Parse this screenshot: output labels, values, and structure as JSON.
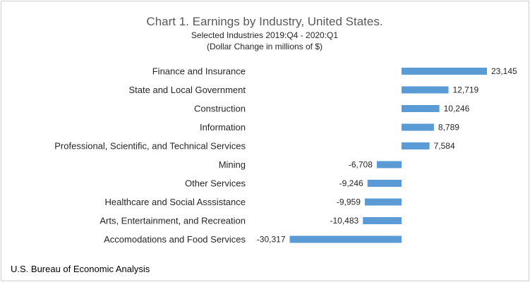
{
  "chart_data": {
    "type": "bar",
    "orientation": "horizontal",
    "title": "Chart 1. Earnings by Industry, United States.",
    "subtitle_lines": [
      "Selected Industries 2019:Q4 - 2020:Q1",
      "(Dollar Change in millions of $)"
    ],
    "categories": [
      "Finance and Insurance",
      "State and Local Government",
      "Construction",
      "Information",
      "Professional, Scientific, and Technical Services",
      "Mining",
      "Other Services",
      "Healthcare and Social Asssistance",
      "Arts, Entertainment, and Recreation",
      "Accomodations and Food Services"
    ],
    "values": [
      23145,
      12719,
      10246,
      8789,
      7584,
      -6708,
      -9246,
      -9959,
      -10483,
      -30317
    ],
    "value_labels": [
      "23,145",
      "12,719",
      "10,246",
      "8,789",
      "7,584",
      "-6,708",
      "-9,246",
      "-9,959",
      "-10,483",
      "-30,317"
    ],
    "bar_color": "#5b9bd5",
    "xlabel": "",
    "ylabel": "",
    "grid": false,
    "legend": "none"
  },
  "source_note": "U.S. Bureau of Economic Analysis"
}
